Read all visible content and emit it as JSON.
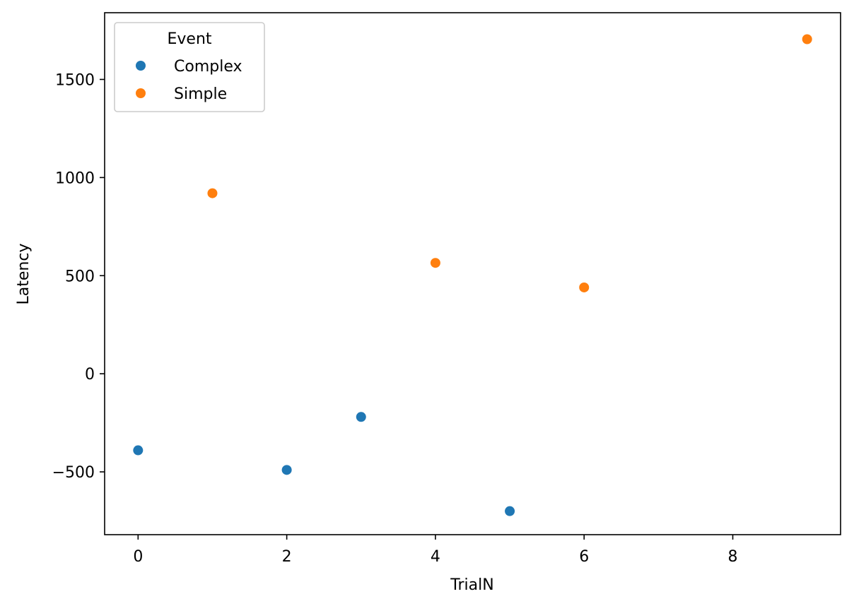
{
  "chart_data": {
    "type": "scatter",
    "title": "",
    "xlabel": "TrialN",
    "ylabel": "Latency",
    "xlim": [
      -0.45,
      9.45
    ],
    "ylim": [
      -820,
      1840
    ],
    "xticks": [
      0,
      2,
      4,
      6,
      8
    ],
    "xtick_labels": [
      "0",
      "2",
      "4",
      "6",
      "8"
    ],
    "yticks": [
      -500,
      0,
      500,
      1000,
      1500
    ],
    "ytick_labels": [
      "−500",
      "0",
      "500",
      "1000",
      "1500"
    ],
    "grid": false,
    "legend": {
      "title": "Event",
      "placement": "top-left"
    },
    "series": [
      {
        "name": "Complex",
        "color": "#1f77b4",
        "points": [
          {
            "x": 0,
            "y": -390
          },
          {
            "x": 2,
            "y": -490
          },
          {
            "x": 3,
            "y": -220
          },
          {
            "x": 5,
            "y": -700
          }
        ]
      },
      {
        "name": "Simple",
        "color": "#ff7f0e",
        "points": [
          {
            "x": 1,
            "y": 920
          },
          {
            "x": 4,
            "y": 565
          },
          {
            "x": 6,
            "y": 440
          },
          {
            "x": 9,
            "y": 1705
          }
        ]
      }
    ]
  }
}
